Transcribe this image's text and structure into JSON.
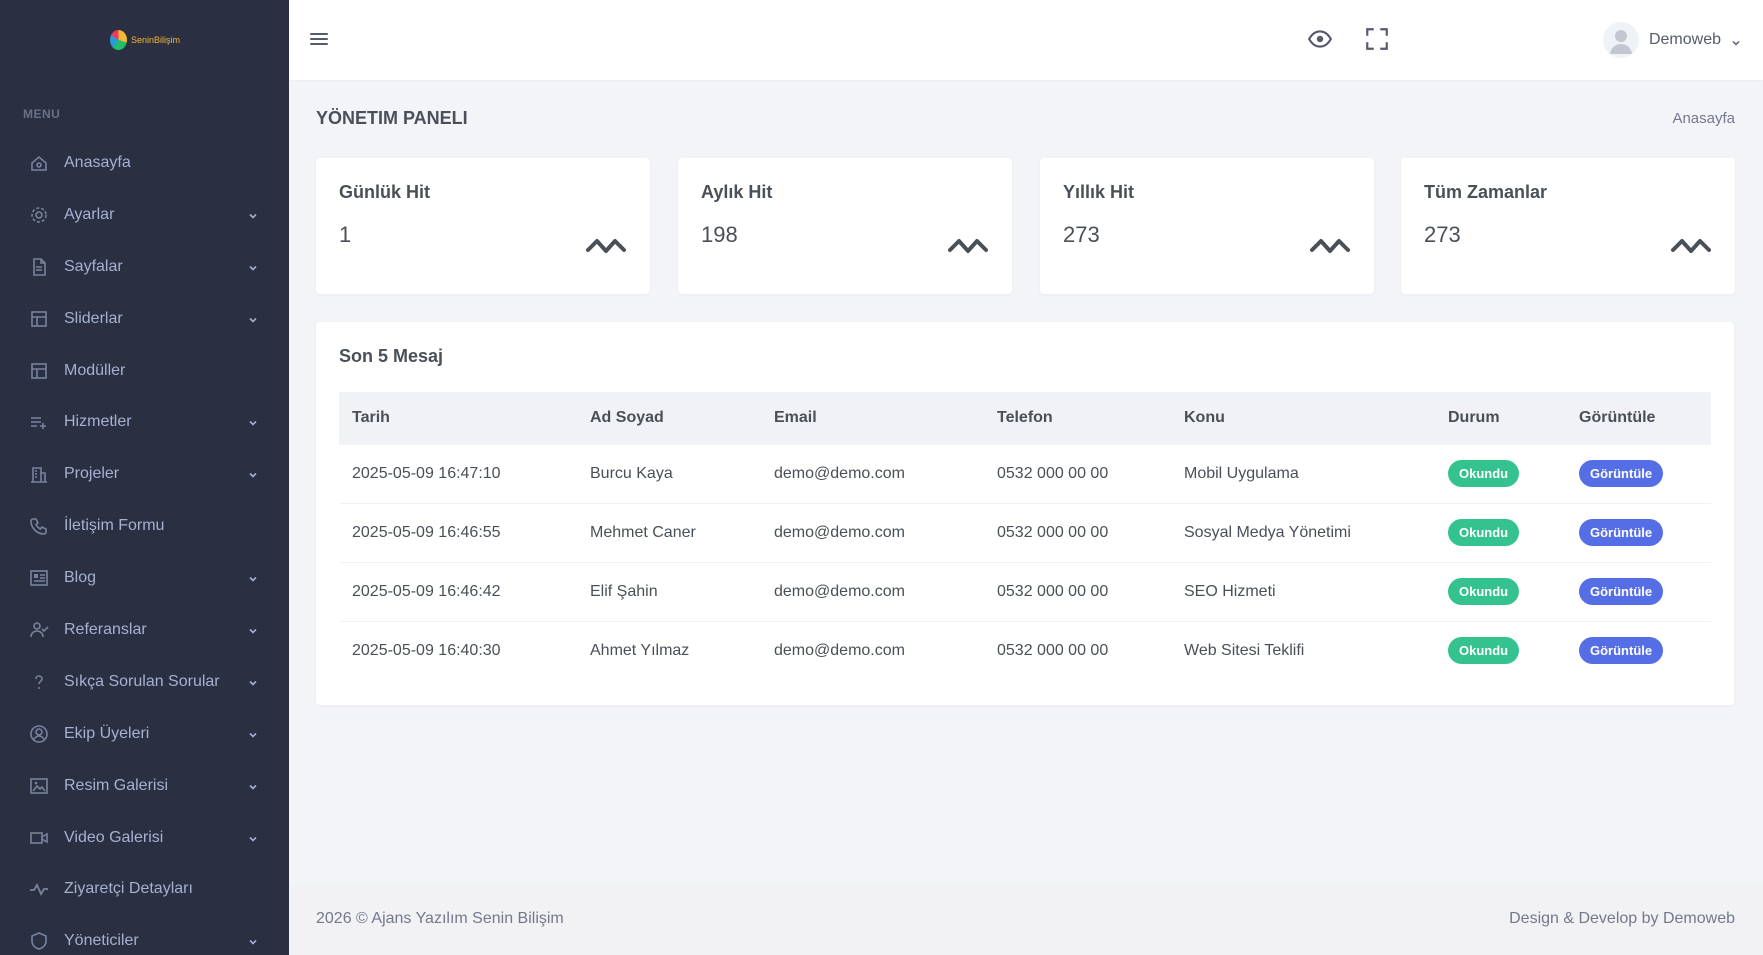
{
  "brand": {
    "logo_text": "SeninBilişim",
    "colors": {
      "sidebar": "#2a3042",
      "accent": "#556ee6",
      "success": "#34c38f"
    }
  },
  "sidebar": {
    "menu_title": "MENU",
    "items": [
      {
        "label": "Anasayfa",
        "icon": "home-icon",
        "has_submenu": false
      },
      {
        "label": "Ayarlar",
        "icon": "gear-icon",
        "has_submenu": true
      },
      {
        "label": "Sayfalar",
        "icon": "document-icon",
        "has_submenu": true
      },
      {
        "label": "Sliderlar",
        "icon": "layout-icon",
        "has_submenu": true
      },
      {
        "label": "Modüller",
        "icon": "layout-icon",
        "has_submenu": false
      },
      {
        "label": "Hizmetler",
        "icon": "list-plus-icon",
        "has_submenu": true
      },
      {
        "label": "Projeler",
        "icon": "building-icon",
        "has_submenu": true
      },
      {
        "label": "İletişim Formu",
        "icon": "phone-icon",
        "has_submenu": false
      },
      {
        "label": "Blog",
        "icon": "newspaper-icon",
        "has_submenu": true
      },
      {
        "label": "Referanslar",
        "icon": "user-check-icon",
        "has_submenu": true
      },
      {
        "label": "Sıkça Sorulan Sorular",
        "icon": "question-icon",
        "has_submenu": true
      },
      {
        "label": "Ekip Üyeleri",
        "icon": "user-circle-icon",
        "has_submenu": true
      },
      {
        "label": "Resim Galerisi",
        "icon": "image-icon",
        "has_submenu": true
      },
      {
        "label": "Video Galerisi",
        "icon": "video-icon",
        "has_submenu": true
      },
      {
        "label": "Ziyaretçi Detayları",
        "icon": "pulse-icon",
        "has_submenu": false
      },
      {
        "label": "Yöneticiler",
        "icon": "shield-icon",
        "has_submenu": true
      }
    ]
  },
  "topbar": {
    "user_name": "Demoweb"
  },
  "page": {
    "title": "YÖNETIM PANELI",
    "breadcrumb": "Anasayfa"
  },
  "stats": [
    {
      "title": "Günlük Hit",
      "value": "1"
    },
    {
      "title": "Aylık Hit",
      "value": "198"
    },
    {
      "title": "Yıllık Hit",
      "value": "273"
    },
    {
      "title": "Tüm Zamanlar",
      "value": "273"
    }
  ],
  "messages": {
    "title": "Son 5 Mesaj",
    "columns": [
      "Tarih",
      "Ad Soyad",
      "Email",
      "Telefon",
      "Konu",
      "Durum",
      "Görüntüle"
    ],
    "rows": [
      {
        "date": "2025-05-09 16:47:10",
        "name": "Burcu Kaya",
        "email": "demo@demo.com",
        "phone": "0532 000 00 00",
        "subject": "Mobil Uygulama",
        "status": "Okundu",
        "action": "Görüntüle"
      },
      {
        "date": "2025-05-09 16:46:55",
        "name": "Mehmet Caner",
        "email": "demo@demo.com",
        "phone": "0532 000 00 00",
        "subject": "Sosyal Medya Yönetimi",
        "status": "Okundu",
        "action": "Görüntüle"
      },
      {
        "date": "2025-05-09 16:46:42",
        "name": "Elif Şahin",
        "email": "demo@demo.com",
        "phone": "0532 000 00 00",
        "subject": "SEO Hizmeti",
        "status": "Okundu",
        "action": "Görüntüle"
      },
      {
        "date": "2025-05-09 16:40:30",
        "name": "Ahmet Yılmaz",
        "email": "demo@demo.com",
        "phone": "0532 000 00 00",
        "subject": "Web Sitesi Teklifi",
        "status": "Okundu",
        "action": "Görüntüle"
      }
    ]
  },
  "footer": {
    "left": "2026 © Ajans Yazılım Senin Bilişim",
    "right": "Design & Develop by Demoweb"
  }
}
